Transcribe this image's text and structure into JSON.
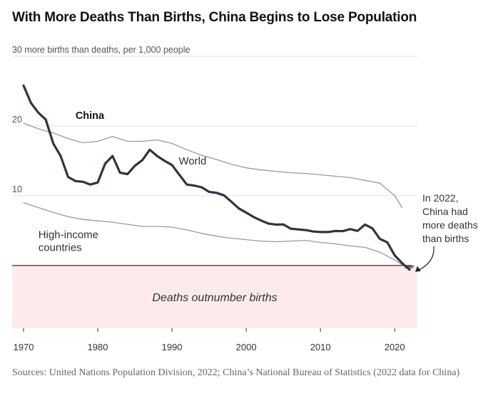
{
  "title": "With More Deaths Than Births, China Begins to Lose Population",
  "source": "Sources: United Nations Population Division, 2022; China’s National Bureau of Statistics (2022 data for China)",
  "chart_data": {
    "type": "line",
    "title": "With More Deaths Than Births, China Begins to Lose Population",
    "ylabel": "more births than deaths, per 1,000 people",
    "xlim": [
      1970,
      2022
    ],
    "ylim": [
      -9,
      30
    ],
    "x_ticks": [
      1970,
      1980,
      1990,
      2000,
      2010,
      2020
    ],
    "y_ticks": [
      {
        "value": 30,
        "label": "30 more births than deaths, per 1,000 people"
      },
      {
        "value": 20,
        "label": "20"
      },
      {
        "value": 10,
        "label": "10"
      },
      {
        "value": 0,
        "label": ""
      }
    ],
    "grid": "horizontal",
    "negative_region": {
      "label": "Deaths outnumber births",
      "color": "#fdebeb"
    },
    "annotation": {
      "text_lines": [
        "In 2022,",
        "China had",
        "more deaths",
        "than births"
      ],
      "x": 2022,
      "y": -0.6
    },
    "series": [
      {
        "name": "China",
        "color": "#2e3540",
        "label_lines": [
          "China"
        ],
        "x": [
          1970,
          1971,
          1972,
          1973,
          1974,
          1975,
          1976,
          1977,
          1978,
          1979,
          1980,
          1981,
          1982,
          1983,
          1984,
          1985,
          1986,
          1987,
          1988,
          1989,
          1990,
          1991,
          1992,
          1993,
          1994,
          1995,
          1996,
          1997,
          1998,
          1999,
          2000,
          2001,
          2002,
          2003,
          2004,
          2005,
          2006,
          2007,
          2008,
          2009,
          2010,
          2011,
          2012,
          2013,
          2014,
          2015,
          2016,
          2017,
          2018,
          2019,
          2020,
          2021,
          2022
        ],
        "values": [
          25.8,
          23.3,
          21.9,
          20.9,
          17.5,
          15.7,
          12.7,
          12.1,
          12.0,
          11.6,
          11.9,
          14.6,
          15.7,
          13.3,
          13.1,
          14.3,
          15.1,
          16.6,
          15.7,
          15.0,
          14.4,
          12.98,
          11.6,
          11.45,
          11.21,
          10.55,
          10.42,
          10.06,
          9.14,
          8.18,
          7.58,
          6.95,
          6.45,
          6.01,
          5.87,
          5.89,
          5.28,
          5.17,
          5.08,
          4.87,
          4.79,
          4.79,
          4.95,
          4.92,
          5.21,
          4.96,
          5.86,
          5.32,
          3.81,
          3.32,
          1.45,
          0.34,
          -0.6
        ]
      },
      {
        "name": "World",
        "color": "#9a9a9a",
        "label_lines": [
          "World"
        ],
        "x": [
          1970,
          1972,
          1974,
          1976,
          1978,
          1980,
          1982,
          1984,
          1986,
          1988,
          1990,
          1992,
          1994,
          1996,
          1998,
          2000,
          2002,
          2004,
          2006,
          2008,
          2010,
          2012,
          2014,
          2016,
          2018,
          2020,
          2021
        ],
        "values": [
          20.4,
          19.6,
          19.0,
          18.2,
          17.6,
          17.8,
          18.5,
          17.8,
          17.8,
          18.0,
          17.5,
          16.6,
          15.8,
          15.2,
          14.5,
          14.0,
          13.7,
          13.5,
          13.3,
          13.2,
          13.0,
          12.8,
          12.6,
          12.2,
          11.8,
          10.0,
          8.3
        ]
      },
      {
        "name": "High-income countries",
        "color": "#9a9a9a",
        "label_lines": [
          "High-income",
          "countries"
        ],
        "x": [
          1970,
          1972,
          1974,
          1976,
          1978,
          1980,
          1982,
          1984,
          1986,
          1988,
          1990,
          1992,
          1994,
          1996,
          1998,
          2000,
          2002,
          2004,
          2006,
          2008,
          2010,
          2012,
          2014,
          2016,
          2018,
          2020,
          2021
        ],
        "values": [
          9.0,
          8.3,
          7.6,
          7.0,
          6.6,
          6.4,
          6.2,
          5.9,
          5.6,
          5.6,
          5.5,
          5.1,
          4.6,
          4.2,
          3.9,
          3.7,
          3.5,
          3.4,
          3.5,
          3.6,
          3.3,
          3.1,
          2.8,
          2.6,
          1.9,
          0.8,
          0.1
        ]
      }
    ]
  }
}
